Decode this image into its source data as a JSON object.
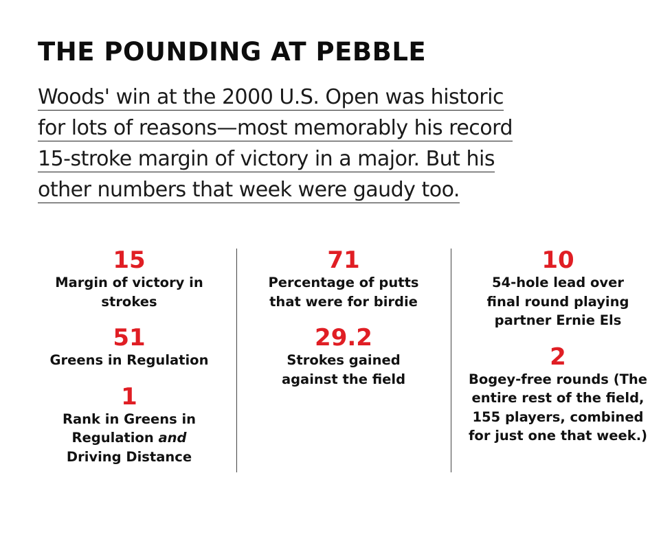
{
  "title": "THE POUNDING AT PEBBLE",
  "intro_lines": [
    "Woods' win at the 2000 U.S. Open was historic",
    "for lots of reasons—most memorably his record",
    "15-stroke margin of victory in a major. But his",
    "other numbers that week were gaudy too."
  ],
  "columns": [
    {
      "stats": [
        {
          "value": "15",
          "label": "Margin of victory in strokes"
        },
        {
          "value": "51",
          "label": "Greens in Regulation"
        },
        {
          "value": "1",
          "label_parts": [
            "Rank in Greens in Regulation ",
            "and",
            " Driving Distance"
          ]
        }
      ]
    },
    {
      "stats": [
        {
          "value": "71",
          "label": "Percentage of putts that were for birdie"
        },
        {
          "value": "29.2",
          "label": "Strokes gained against the field"
        }
      ]
    },
    {
      "stats": [
        {
          "value": "10",
          "label": "54-hole lead over final round playing partner Ernie Els"
        },
        {
          "value": "2",
          "label": "Bogey-free rounds (The entire rest of the field, 155 players, combined for just one that week.)"
        }
      ]
    }
  ],
  "colors": {
    "accent": "#e01e24",
    "text": "#111111"
  }
}
